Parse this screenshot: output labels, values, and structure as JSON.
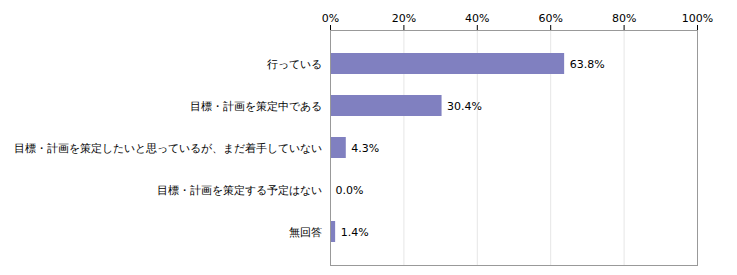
{
  "chart_data": {
    "type": "bar",
    "orientation": "horizontal",
    "categories": [
      "行っている",
      "目標・計画を策定中である",
      "目標・計画を策定したいと思っているが、まだ着手していない",
      "目標・計画を策定する予定はない",
      "無回答"
    ],
    "values": [
      63.8,
      30.4,
      4.3,
      0.0,
      1.4
    ],
    "value_labels": [
      "63.8%",
      "30.4%",
      "4.3%",
      "0.0%",
      "1.4%"
    ],
    "data_labels": true,
    "color": "#8080c0",
    "xlim": [
      0,
      100
    ],
    "xticks": [
      {
        "value": 0,
        "label": "0%"
      },
      {
        "value": 20,
        "label": "20%"
      },
      {
        "value": 40,
        "label": "40%"
      },
      {
        "value": 60,
        "label": "60%"
      },
      {
        "value": 80,
        "label": "80%"
      },
      {
        "value": 100,
        "label": "100%"
      }
    ],
    "grid": true
  }
}
